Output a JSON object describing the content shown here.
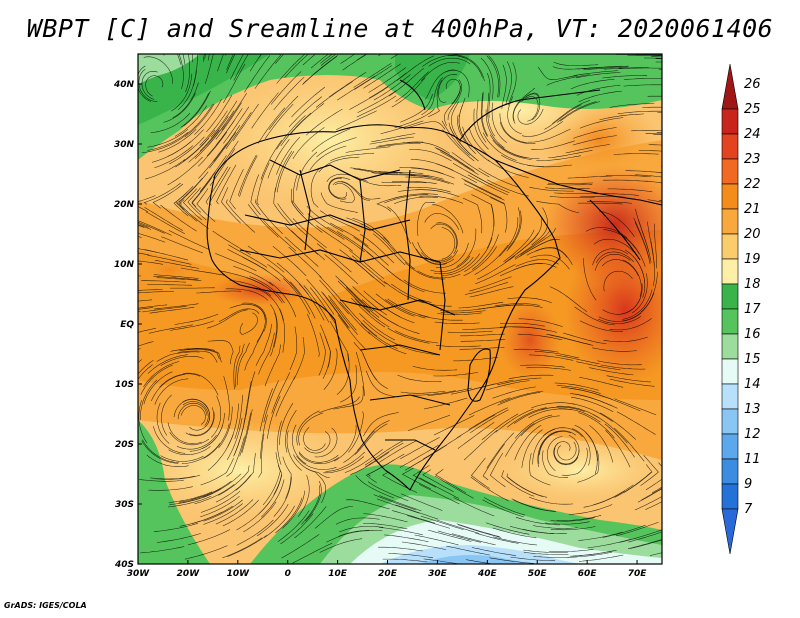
{
  "title": "WBPT [C] and Sreamline at 400hPa, VT: 2020061406",
  "footer": "GrADS: IGES/COLA",
  "map": {
    "lat_labels": [
      "40N",
      "30N",
      "20N",
      "10N",
      "EQ",
      "10S",
      "20S",
      "30S",
      "40S"
    ],
    "lon_labels": [
      "30W",
      "20W",
      "10W",
      "0",
      "10E",
      "20E",
      "30E",
      "40E",
      "50E",
      "60E",
      "70E"
    ],
    "lat_range": [
      -40,
      45
    ],
    "lon_range": [
      -30,
      75
    ]
  },
  "colorbar": {
    "labels": [
      "26",
      "25",
      "24",
      "23",
      "22",
      "21",
      "20",
      "19",
      "18",
      "17",
      "16",
      "15",
      "14",
      "13",
      "12",
      "11",
      "9",
      "7"
    ],
    "colors": [
      "#a01616",
      "#c8241c",
      "#e4431f",
      "#f06a22",
      "#f48c1c",
      "#f8a83c",
      "#fbcc6c",
      "#fdf0a6",
      "#38b44a",
      "#56c45c",
      "#9cdc9c",
      "#e6fbf6",
      "#b8e0fb",
      "#8ac6f4",
      "#5ca8ec",
      "#3c8ce2",
      "#2472d8",
      "#2a6ad8"
    ]
  }
}
